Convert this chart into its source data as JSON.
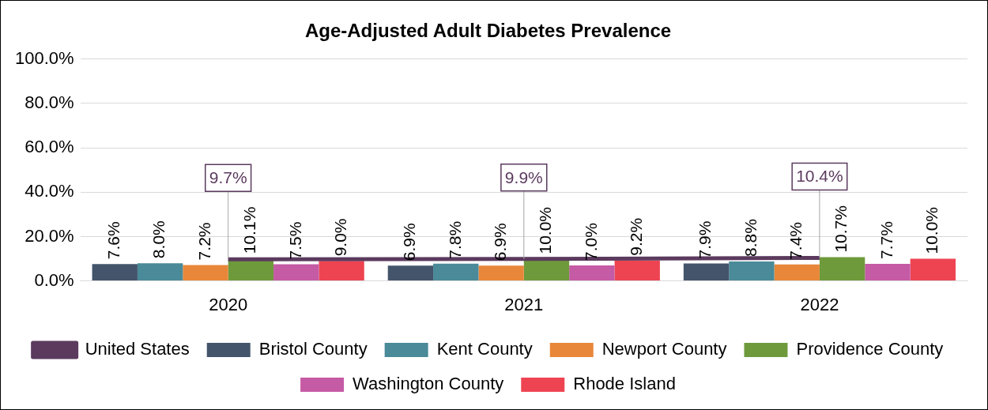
{
  "chart_data": {
    "type": "bar",
    "title": "Age-Adjusted Adult Diabetes Prevalence",
    "categories": [
      "2020",
      "2021",
      "2022"
    ],
    "series": [
      {
        "name": "Bristol County",
        "color": "#44546a",
        "values": [
          7.6,
          6.9,
          7.9
        ],
        "value_labels": [
          "7.6%",
          "6.9%",
          "7.9%"
        ]
      },
      {
        "name": "Kent County",
        "color": "#4a8a99",
        "values": [
          8.0,
          7.8,
          8.8
        ],
        "value_labels": [
          "8.0%",
          "7.8%",
          "8.8%"
        ]
      },
      {
        "name": "Newport County",
        "color": "#e8873a",
        "values": [
          7.2,
          6.9,
          7.4
        ],
        "value_labels": [
          "7.2%",
          "6.9%",
          "7.4%"
        ]
      },
      {
        "name": "Providence County",
        "color": "#6e9a3c",
        "values": [
          10.1,
          10.0,
          10.7
        ],
        "value_labels": [
          "10.1%",
          "10.0%",
          "10.7%"
        ]
      },
      {
        "name": "Washington County",
        "color": "#c55aa5",
        "values": [
          7.5,
          7.0,
          7.7
        ],
        "value_labels": [
          "7.5%",
          "7.0%",
          "7.7%"
        ]
      },
      {
        "name": "Rhode Island",
        "color": "#ee4452",
        "values": [
          9.0,
          9.2,
          10.0
        ],
        "value_labels": [
          "9.0%",
          "9.2%",
          "10.0%"
        ]
      },
      {
        "name": "United States",
        "type": "line",
        "color": "#5b3a5e",
        "values": [
          9.7,
          9.9,
          10.4
        ],
        "value_labels": [
          "9.7%",
          "9.9%",
          "10.4%"
        ]
      }
    ],
    "ylim": [
      0,
      100
    ],
    "yticks": [
      {
        "value": 0,
        "label": "0.0%"
      },
      {
        "value": 20,
        "label": "20.0%"
      },
      {
        "value": 40,
        "label": "40.0%"
      },
      {
        "value": 60,
        "label": "60.0%"
      },
      {
        "value": 80,
        "label": "80.0%"
      },
      {
        "value": 100,
        "label": "100.0%"
      }
    ],
    "grid": "y",
    "legend": "bottom",
    "marker": "none"
  }
}
